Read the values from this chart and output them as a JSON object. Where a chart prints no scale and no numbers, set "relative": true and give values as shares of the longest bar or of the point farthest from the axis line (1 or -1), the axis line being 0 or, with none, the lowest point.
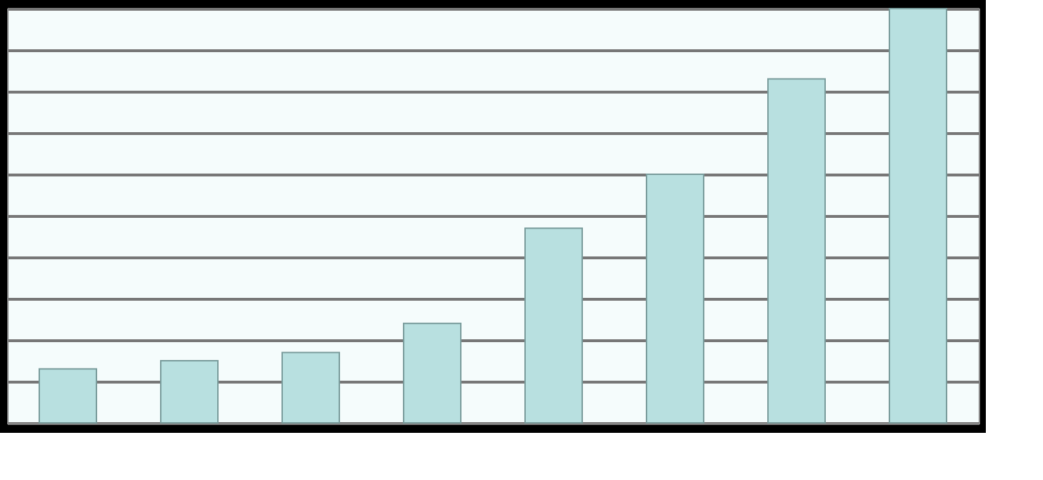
{
  "chart_data": {
    "type": "bar",
    "relative": true,
    "categories": [
      null,
      null,
      null,
      null,
      null,
      null,
      null,
      null
    ],
    "series": [
      {
        "color": "#b8e0e0",
        "values": [
          0.13,
          0.15,
          0.17,
          0.24,
          0.47,
          0.6,
          0.83,
          1
        ]
      }
    ],
    "grid": "y"
  }
}
